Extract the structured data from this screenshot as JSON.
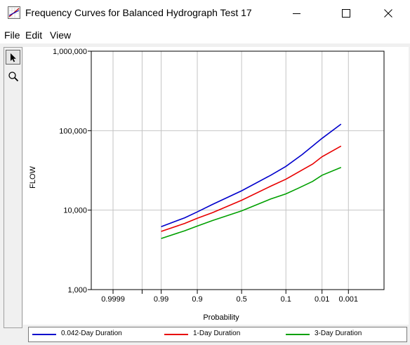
{
  "window": {
    "title": "Frequency Curves for Balanced Hydrograph Test 17",
    "app_icon": "chart-app-icon",
    "controls": [
      "minimize-icon",
      "maximize-icon",
      "close-icon"
    ]
  },
  "menu": {
    "items": [
      {
        "label": "File"
      },
      {
        "label": "Edit"
      },
      {
        "label": "View"
      }
    ]
  },
  "toolbar": {
    "tools": [
      {
        "name": "pointer-icon",
        "active": true
      },
      {
        "name": "zoom-icon",
        "active": false
      }
    ]
  },
  "chart_data": {
    "type": "line",
    "title": "",
    "xlabel": "Probability",
    "ylabel": "FLOW",
    "x_scale": "normal-probability (exceedance)",
    "y_scale": "log",
    "x_ticks": [
      {
        "p": 0.9999,
        "label": "0.9999"
      },
      {
        "p": 0.99,
        "label": "0.99"
      },
      {
        "p": 0.9,
        "label": "0.9"
      },
      {
        "p": 0.5,
        "label": "0.5"
      },
      {
        "p": 0.1,
        "label": "0.1"
      },
      {
        "p": 0.01,
        "label": "0.01"
      },
      {
        "p": 0.001,
        "label": "0.001"
      }
    ],
    "y_ticks": [
      {
        "v": 1000,
        "label": "1,000"
      },
      {
        "v": 10000,
        "label": "10,000"
      },
      {
        "v": 100000,
        "label": "100,000"
      },
      {
        "v": 1000000,
        "label": "1,000,000"
      }
    ],
    "ylim": [
      1000,
      1000000
    ],
    "grid": true,
    "legend_position": "bottom",
    "colors": {
      "series1": "#0000cc",
      "series2": "#e80000",
      "series3": "#00a000"
    },
    "series": [
      {
        "name": "0.042-Day Duration",
        "color": "#0000cc",
        "points": [
          [
            0.99,
            6200
          ],
          [
            0.95,
            8000
          ],
          [
            0.9,
            9500
          ],
          [
            0.8,
            11800
          ],
          [
            0.5,
            17500
          ],
          [
            0.2,
            27500
          ],
          [
            0.1,
            35500
          ],
          [
            0.04,
            50000
          ],
          [
            0.02,
            64000
          ],
          [
            0.01,
            80000
          ],
          [
            0.002,
            121000
          ]
        ]
      },
      {
        "name": "1-Day Duration",
        "color": "#e80000",
        "points": [
          [
            0.99,
            5400
          ],
          [
            0.95,
            6800
          ],
          [
            0.9,
            7900
          ],
          [
            0.8,
            9300
          ],
          [
            0.5,
            13300
          ],
          [
            0.2,
            20000
          ],
          [
            0.1,
            24500
          ],
          [
            0.04,
            32000
          ],
          [
            0.02,
            38000
          ],
          [
            0.01,
            47000
          ],
          [
            0.002,
            64000
          ]
        ]
      },
      {
        "name": "3-Day Duration",
        "color": "#00a000",
        "points": [
          [
            0.99,
            4400
          ],
          [
            0.95,
            5500
          ],
          [
            0.9,
            6300
          ],
          [
            0.8,
            7400
          ],
          [
            0.5,
            9800
          ],
          [
            0.2,
            13800
          ],
          [
            0.1,
            16000
          ],
          [
            0.05,
            18900
          ],
          [
            0.02,
            23000
          ],
          [
            0.01,
            27500
          ],
          [
            0.002,
            34500
          ]
        ]
      }
    ]
  }
}
